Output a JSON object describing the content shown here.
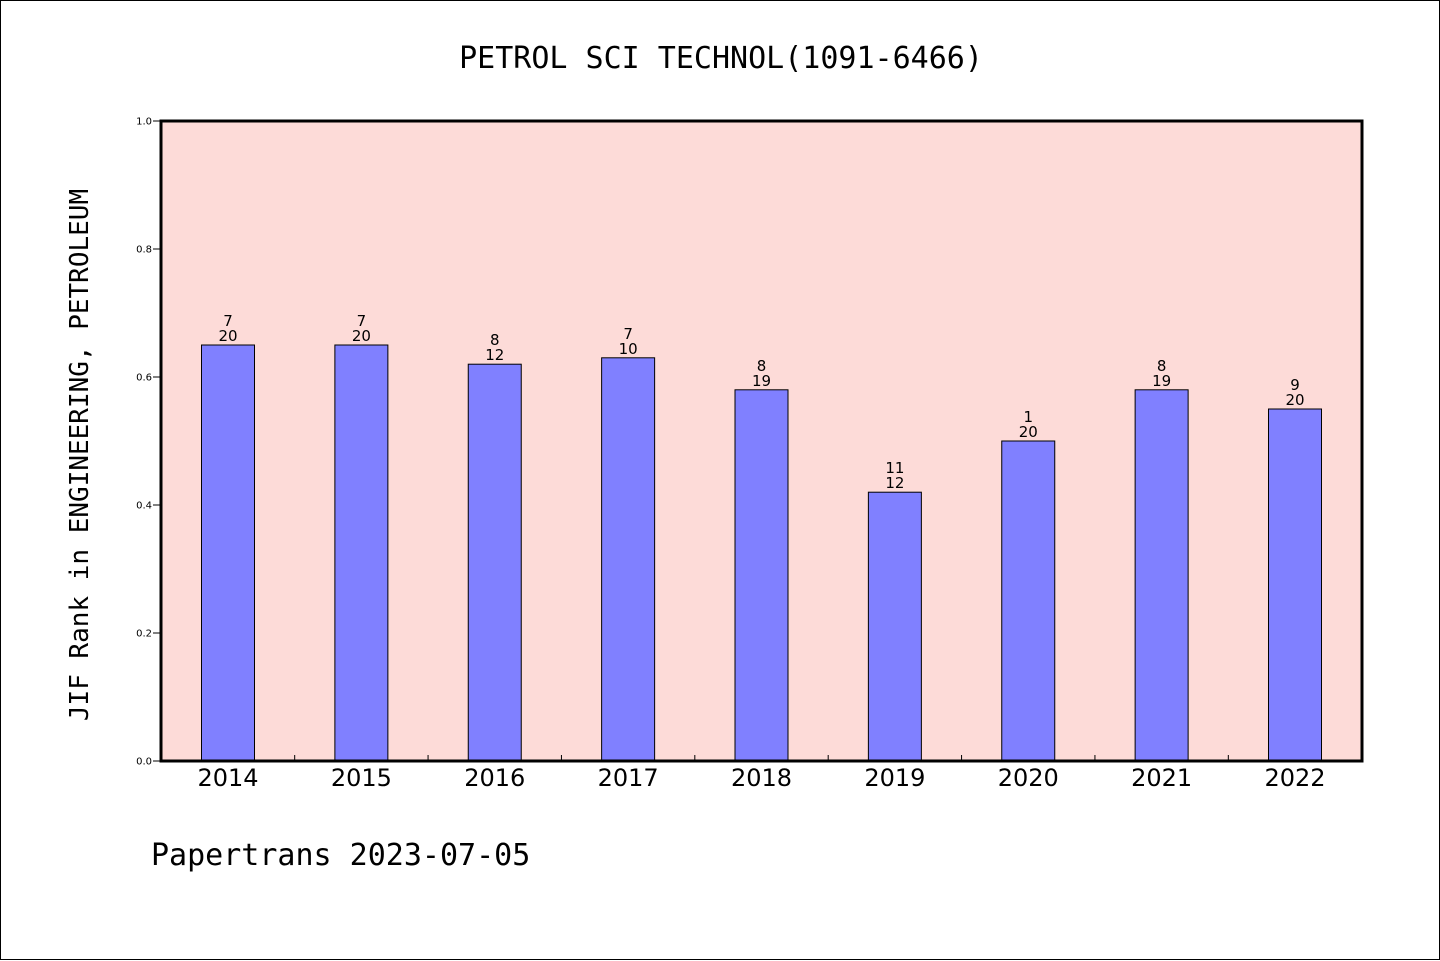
{
  "chart_data": {
    "type": "bar",
    "title": "PETROL SCI TECHNOL(1091-6466)",
    "ylabel": "JIF Rank in ENGINEERING, PETROLEUM",
    "xlabel": "",
    "ylim": [
      0,
      1.0
    ],
    "yticks": [
      "0.0",
      "0.2",
      "0.4",
      "0.6",
      "0.8",
      "1.0"
    ],
    "grid": false,
    "categories": [
      "2014",
      "2015",
      "2016",
      "2017",
      "2018",
      "2019",
      "2020",
      "2021",
      "2022"
    ],
    "values": [
      0.65,
      0.65,
      0.62,
      0.63,
      0.58,
      0.42,
      0.5,
      0.58,
      0.55
    ],
    "rank": [
      "7",
      "7",
      "8",
      "7",
      "8",
      "11",
      "1",
      "8",
      "9"
    ],
    "total": [
      "20",
      "20",
      "12",
      "10",
      "19",
      "12",
      "20",
      "19",
      "20"
    ],
    "bar_color": "#8080ff",
    "plot_background": "#fddbd8"
  },
  "footer": "Papertrans 2023-07-05"
}
